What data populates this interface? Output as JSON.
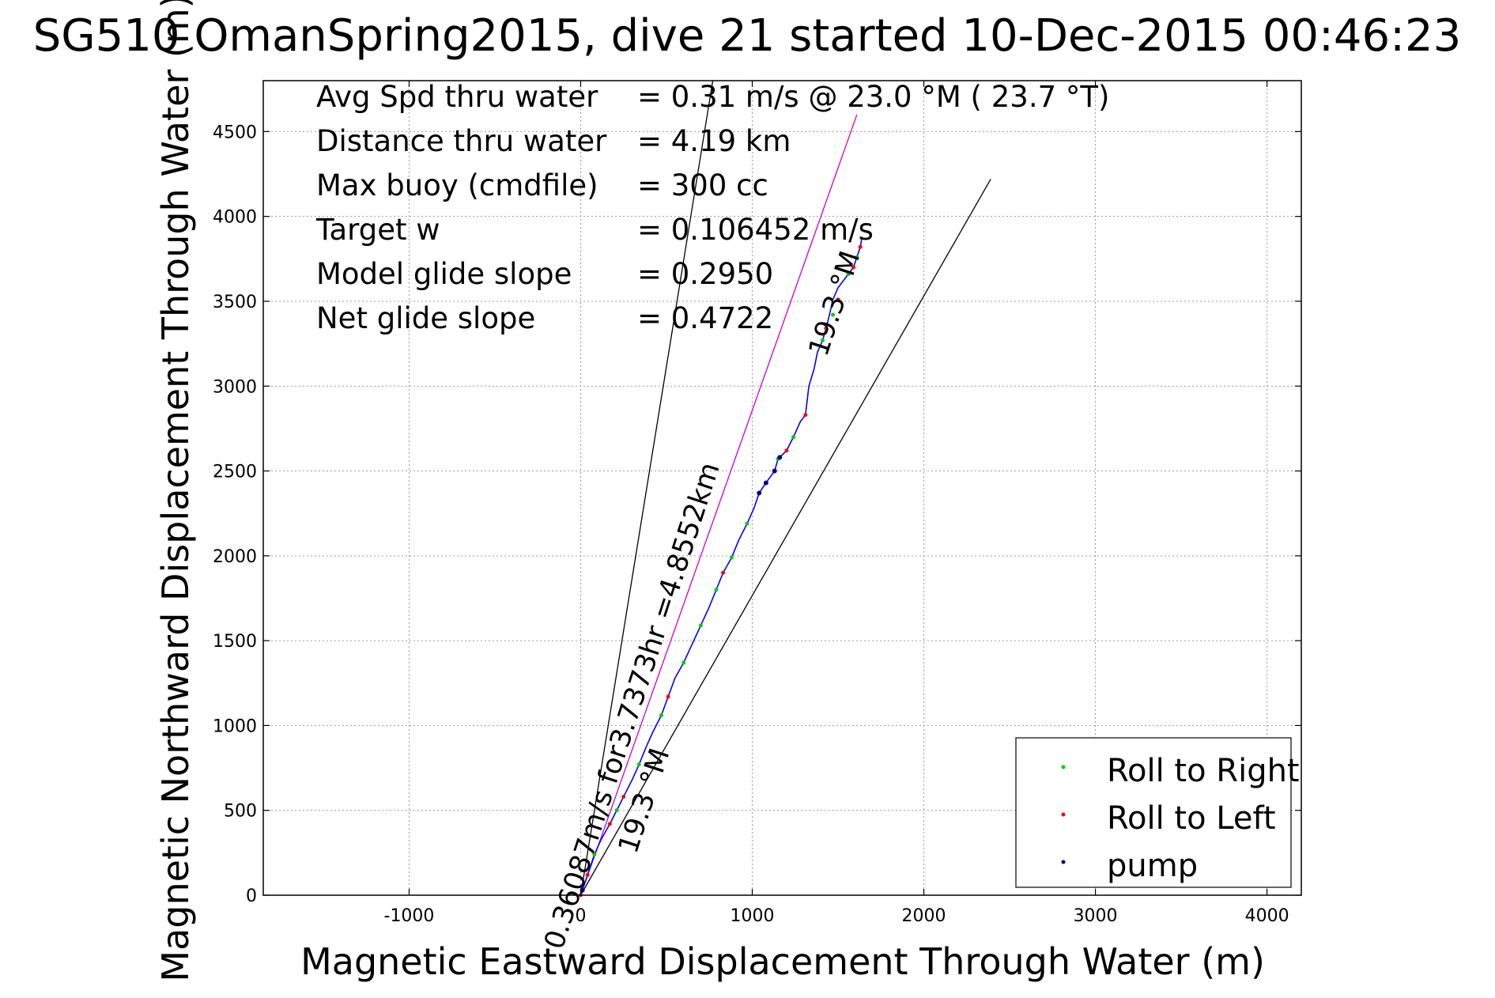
{
  "chart_data": {
    "type": "line",
    "title": "SG510 OmanSpring2015, dive 21 started 10-Dec-2015 00:46:23",
    "xlabel": "Magnetic Eastward Displacement Through Water (m)",
    "ylabel": "Magnetic Northward Displacement Through Water (m)",
    "xlim": [
      -1850,
      4200
    ],
    "ylim": [
      0,
      4800
    ],
    "xticks": [
      -1000,
      0,
      1000,
      2000,
      3000,
      4000
    ],
    "yticks": [
      0,
      500,
      1000,
      1500,
      2000,
      2500,
      3000,
      3500,
      4000,
      4500
    ],
    "grid": true,
    "stats": [
      {
        "label": "Avg Spd thru water",
        "value": "=  0.31 m/s @  23.0 °M ( 23.7 °T)"
      },
      {
        "label": "Distance thru water",
        "value": "=  4.19 km"
      },
      {
        "label": "Max buoy (cmdfile)",
        "value": "= 300 cc"
      },
      {
        "label": "Target w",
        "value": "= 0.106452 m/s"
      },
      {
        "label": "Model glide slope",
        "value": "= 0.2950"
      },
      {
        "label": "Net glide slope",
        "value": "= 0.4722"
      }
    ],
    "annotations": [
      {
        "text": "0.36087m/s for3.7373hr =4.8552km",
        "x": 350,
        "y": 1100,
        "rotation_deg": -72
      },
      {
        "text": "19.3 °M",
        "x": 1530,
        "y": 3470,
        "rotation_deg": -72
      },
      {
        "text": "19.3 °M",
        "x": 420,
        "y": 540,
        "rotation_deg": -72
      }
    ],
    "reference_lines": [
      {
        "name": "left bound",
        "color": "#000000",
        "x": [
          0,
          770
        ],
        "y": [
          0,
          4800
        ]
      },
      {
        "name": "right bound",
        "color": "#000000",
        "x": [
          0,
          2390
        ],
        "y": [
          0,
          4220
        ]
      },
      {
        "name": "track",
        "color": "#cc00cc",
        "x": [
          0,
          1610
        ],
        "y": [
          0,
          4600
        ]
      }
    ],
    "series": [
      {
        "name": "glider track",
        "color": "#0000ff",
        "x": [
          0,
          40,
          80,
          120,
          170,
          210,
          250,
          300,
          340,
          380,
          420,
          470,
          510,
          550,
          600,
          650,
          700,
          750,
          790,
          830,
          880,
          920,
          970,
          1010,
          1040,
          1080,
          1130,
          1150,
          1160,
          1200,
          1240,
          1280,
          1310,
          1330,
          1360,
          1380,
          1410,
          1430,
          1450,
          1470,
          1500,
          1530,
          1560,
          1590,
          1610,
          1630,
          1640
        ],
        "y": [
          0,
          120,
          240,
          330,
          420,
          500,
          580,
          680,
          770,
          870,
          960,
          1060,
          1170,
          1280,
          1370,
          1480,
          1590,
          1700,
          1800,
          1900,
          1990,
          2090,
          2190,
          2280,
          2370,
          2430,
          2500,
          2570,
          2580,
          2620,
          2700,
          2790,
          2830,
          3000,
          3100,
          3200,
          3270,
          3340,
          3420,
          3510,
          3580,
          3620,
          3660,
          3700,
          3760,
          3820,
          3880
        ]
      }
    ],
    "marker_series": [
      {
        "name": "Roll to Right",
        "color": "#00cc00",
        "x": [
          80,
          210,
          340,
          470,
          600,
          700,
          790,
          880,
          970,
          1150,
          1240,
          1410,
          1470,
          1560,
          1610
        ],
        "y": [
          240,
          500,
          770,
          1060,
          1370,
          1590,
          1800,
          1990,
          2190,
          2570,
          2700,
          3270,
          3420,
          3660,
          3760
        ]
      },
      {
        "name": "Roll to Left",
        "color": "#ff0000",
        "x": [
          0,
          40,
          170,
          250,
          510,
          830,
          1200,
          1310,
          1430,
          1500,
          1590,
          1630
        ],
        "y": [
          0,
          120,
          420,
          580,
          1170,
          1900,
          2620,
          2830,
          3340,
          3510,
          3700,
          3820
        ]
      },
      {
        "name": "pump",
        "color": "#000080",
        "x": [
          10,
          1040,
          1080,
          1130,
          1160
        ],
        "y": [
          30,
          2370,
          2430,
          2500,
          2580
        ]
      }
    ],
    "legend": {
      "position": "bottom-right",
      "entries": [
        "Roll to Right",
        "Roll to Left",
        "pump"
      ]
    }
  }
}
